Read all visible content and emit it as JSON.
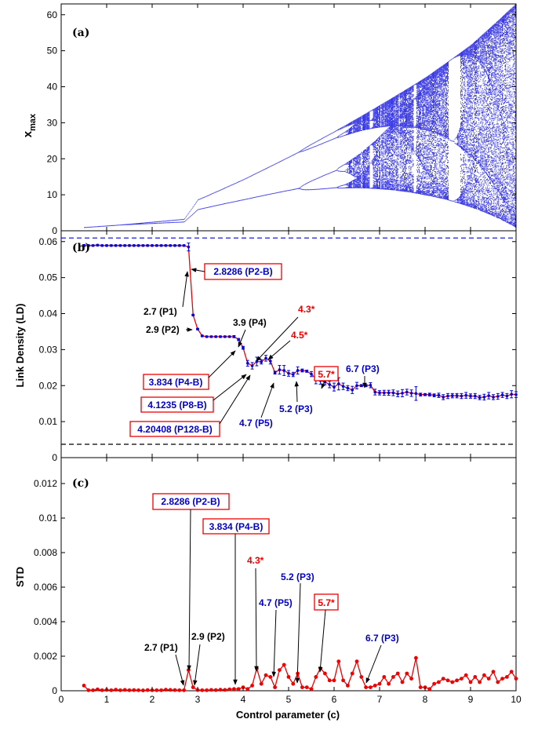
{
  "chart_data": [
    {
      "type": "scatter",
      "panel_label": "(a)",
      "title": "",
      "xlabel": "",
      "ylabel": "x",
      "ylabel_sub": "max",
      "xlim": [
        0,
        10
      ],
      "ylim": [
        0,
        63
      ],
      "xticks": [
        0,
        1,
        2,
        3,
        4,
        5,
        6,
        7,
        8,
        9,
        10
      ],
      "yticks": [
        0,
        10,
        20,
        30,
        40,
        50,
        60
      ],
      "color": "#0000dd",
      "description_series": {
        "name": "",
        "envelope_max": [
          [
            0.5,
            0.9
          ],
          [
            2.7,
            3.8
          ],
          [
            3.0,
            10.5
          ],
          [
            4.0,
            17
          ],
          [
            5.0,
            24
          ],
          [
            6.0,
            31
          ],
          [
            7.0,
            38
          ],
          [
            8.0,
            45
          ],
          [
            9.0,
            53
          ],
          [
            10.0,
            63
          ]
        ],
        "period_windows": [
          [
            4.9,
            5.3
          ],
          [
            6.6,
            6.85
          ],
          [
            8.6,
            9.2
          ]
        ]
      }
    },
    {
      "type": "line",
      "panel_label": "(b)",
      "title": "",
      "xlabel": "",
      "ylabel": "Link Density (LD)",
      "xlim": [
        0,
        10
      ],
      "ylim": [
        0,
        0.063
      ],
      "xticks": [
        0,
        1,
        2,
        3,
        4,
        5,
        6,
        7,
        8,
        9,
        10
      ],
      "yticks": [
        0,
        0.01,
        0.02,
        0.03,
        0.04,
        0.05,
        0.06
      ],
      "upper_dashed": 0.061,
      "lower_dashed": 0.0037,
      "series": [
        {
          "name": "",
          "color": "#0000dd",
          "x": [
            0.5,
            0.6,
            0.7,
            0.8,
            0.9,
            1.0,
            1.1,
            1.2,
            1.3,
            1.4,
            1.5,
            1.6,
            1.7,
            1.8,
            1.9,
            2.0,
            2.1,
            2.2,
            2.3,
            2.4,
            2.5,
            2.6,
            2.7,
            2.8,
            2.9,
            3.0,
            3.1,
            3.2,
            3.3,
            3.4,
            3.5,
            3.6,
            3.7,
            3.8,
            3.9,
            4.0,
            4.1,
            4.2,
            4.3,
            4.4,
            4.5,
            4.6,
            4.7,
            4.8,
            4.9,
            5.0,
            5.1,
            5.2,
            5.3,
            5.4,
            5.5,
            5.6,
            5.7,
            5.8,
            5.9,
            6.0,
            6.1,
            6.2,
            6.3,
            6.4,
            6.5,
            6.6,
            6.7,
            6.8,
            6.9,
            7.0,
            7.1,
            7.2,
            7.3,
            7.4,
            7.5,
            7.6,
            7.7,
            7.8,
            7.9,
            8.0,
            8.1,
            8.2,
            8.3,
            8.4,
            8.5,
            8.6,
            8.7,
            8.8,
            8.9,
            9.0,
            9.1,
            9.2,
            9.3,
            9.4,
            9.5,
            9.6,
            9.7,
            9.8,
            9.9,
            10.0
          ],
          "y": [
            0.0589,
            0.0589,
            0.0589,
            0.059,
            0.0589,
            0.0589,
            0.0589,
            0.0589,
            0.0589,
            0.0589,
            0.0589,
            0.0589,
            0.0589,
            0.0589,
            0.0589,
            0.0589,
            0.0589,
            0.0589,
            0.0589,
            0.0589,
            0.0589,
            0.0589,
            0.0589,
            0.0585,
            0.0396,
            0.0357,
            0.0338,
            0.0336,
            0.0336,
            0.0336,
            0.0336,
            0.0336,
            0.0336,
            0.0336,
            0.0328,
            0.0305,
            0.0262,
            0.0255,
            0.0267,
            0.0266,
            0.0276,
            0.0268,
            0.0236,
            0.0244,
            0.0242,
            0.0234,
            0.0231,
            0.0242,
            0.0242,
            0.024,
            0.0232,
            0.0219,
            0.0214,
            0.021,
            0.0203,
            0.0196,
            0.0205,
            0.0198,
            0.0193,
            0.0188,
            0.02,
            0.02,
            0.02,
            0.0201,
            0.0182,
            0.018,
            0.018,
            0.018,
            0.018,
            0.0177,
            0.0179,
            0.0182,
            0.0179,
            0.0178,
            0.0175,
            0.0175,
            0.0175,
            0.0173,
            0.0173,
            0.0168,
            0.0171,
            0.0172,
            0.0172,
            0.0171,
            0.0173,
            0.0171,
            0.0171,
            0.0167,
            0.0168,
            0.0172,
            0.0168,
            0.017,
            0.0174,
            0.0171,
            0.0176,
            0.0175
          ],
          "err": [
            0.0003,
            0.0002,
            0.0002,
            0.0002,
            0.0002,
            0.0002,
            0.0002,
            0.0002,
            0.0002,
            0.0002,
            0.0002,
            0.0002,
            0.0002,
            0.0002,
            0.0002,
            0.0002,
            0.0002,
            0.0002,
            0.0002,
            0.0002,
            0.0002,
            0.0002,
            0.0002,
            0.0011,
            0.0002,
            0.0002,
            0.0002,
            0.0002,
            0.0002,
            0.0002,
            0.0002,
            0.0002,
            0.0002,
            0.0003,
            0.0003,
            0.0004,
            0.0008,
            0.0009,
            0.0012,
            0.0006,
            0.0008,
            0.0008,
            0.0004,
            0.0012,
            0.0014,
            0.0008,
            0.0006,
            0.001,
            0.0004,
            0.0003,
            0.0007,
            0.0014,
            0.001,
            0.0008,
            0.0009,
            0.0011,
            0.0017,
            0.0009,
            0.0007,
            0.001,
            0.0009,
            0.0003,
            0.0003,
            0.0007,
            0.0008,
            0.0006,
            0.0007,
            0.0007,
            0.0008,
            0.0008,
            0.001,
            0.0008,
            0.0009,
            0.0019,
            0.0004,
            0.0003,
            0.0004,
            0.0004,
            0.0006,
            0.0007,
            0.0007,
            0.0006,
            0.0006,
            0.0007,
            0.0008,
            0.0006,
            0.0007,
            0.0006,
            0.0008,
            0.0009,
            0.0007,
            0.0008,
            0.0007,
            0.0007,
            0.001,
            0.0008
          ]
        }
      ],
      "annotations": [
        {
          "text": "2.8286 (P2-B)",
          "boxed": true,
          "color": "#0000cc"
        },
        {
          "text": "2.7 (P1)",
          "boxed": false,
          "color": "#000000"
        },
        {
          "text": "2.9 (P2)",
          "boxed": false,
          "color": "#000000"
        },
        {
          "text": "3.9 (P4)",
          "boxed": false,
          "color": "#000000"
        },
        {
          "text": "4.3*",
          "boxed": false,
          "color": "#ff0000"
        },
        {
          "text": "4.5*",
          "boxed": false,
          "color": "#ff0000"
        },
        {
          "text": "5.7*",
          "boxed": true,
          "color": "#ff0000"
        },
        {
          "text": "6.7 (P3)",
          "boxed": false,
          "color": "#0000cc"
        },
        {
          "text": "3.834 (P4-B)",
          "boxed": true,
          "color": "#0000cc"
        },
        {
          "text": "4.1235 (P8-B)",
          "boxed": true,
          "color": "#0000cc"
        },
        {
          "text": "4.20408 (P128-B)",
          "boxed": true,
          "color": "#0000cc"
        },
        {
          "text": "4.7 (P5)",
          "boxed": false,
          "color": "#0000cc"
        },
        {
          "text": "5.2 (P3)",
          "boxed": false,
          "color": "#0000cc"
        }
      ]
    },
    {
      "type": "line",
      "panel_label": "(c)",
      "title": "",
      "xlabel": "Control parameter (c)",
      "ylabel": "STD",
      "xlim": [
        0,
        10
      ],
      "ylim": [
        0,
        0.0135
      ],
      "xticks": [
        0,
        1,
        2,
        3,
        4,
        5,
        6,
        7,
        8,
        9,
        10
      ],
      "yticks": [
        0,
        0.002,
        0.004,
        0.006,
        0.008,
        0.01,
        0.012
      ],
      "series": [
        {
          "name": "",
          "color": "#ee0000",
          "x": [
            0.5,
            0.6,
            0.7,
            0.8,
            0.9,
            1.0,
            1.1,
            1.2,
            1.3,
            1.4,
            1.5,
            1.6,
            1.7,
            1.8,
            1.9,
            2.0,
            2.1,
            2.2,
            2.3,
            2.4,
            2.5,
            2.6,
            2.7,
            2.8,
            2.9,
            3.0,
            3.1,
            3.2,
            3.3,
            3.4,
            3.5,
            3.6,
            3.7,
            3.8,
            3.9,
            4.0,
            4.1,
            4.2,
            4.3,
            4.4,
            4.5,
            4.6,
            4.7,
            4.8,
            4.9,
            5.0,
            5.1,
            5.2,
            5.3,
            5.4,
            5.5,
            5.6,
            5.7,
            5.8,
            5.9,
            6.0,
            6.1,
            6.2,
            6.3,
            6.4,
            6.5,
            6.6,
            6.7,
            6.8,
            6.9,
            7.0,
            7.1,
            7.2,
            7.3,
            7.4,
            7.5,
            7.6,
            7.7,
            7.8,
            7.9,
            8.0,
            8.1,
            8.2,
            8.3,
            8.4,
            8.5,
            8.6,
            8.7,
            8.8,
            8.9,
            9.0,
            9.1,
            9.2,
            9.3,
            9.4,
            9.5,
            9.6,
            9.7,
            9.8,
            9.9,
            10.0
          ],
          "y": [
            0.0003,
            3e-05,
            3e-05,
            8e-05,
            3e-05,
            5e-05,
            3e-05,
            6e-05,
            3e-05,
            5e-05,
            3e-05,
            4e-05,
            3e-05,
            2e-05,
            4e-05,
            3e-05,
            3e-05,
            3e-05,
            6e-05,
            5e-05,
            4e-05,
            3e-05,
            3e-05,
            0.0012,
            0.0002,
            4e-05,
            3e-05,
            3e-05,
            5e-05,
            4e-05,
            6e-05,
            5e-05,
            8e-05,
            0.0001,
            0.0001,
            0.0002,
            0.0001,
            0.0003,
            0.0013,
            0.0004,
            0.0009,
            0.0008,
            0.0002,
            0.0012,
            0.0015,
            0.0008,
            0.0004,
            0.001,
            0.0002,
            0.0002,
            0.0001,
            0.0008,
            0.0013,
            0.001,
            0.0006,
            0.0006,
            0.0017,
            0.0006,
            0.0003,
            0.001,
            0.0017,
            0.0008,
            0.0002,
            0.0002,
            0.0003,
            0.0004,
            0.0008,
            0.0004,
            0.0008,
            0.001,
            0.0005,
            0.001,
            0.0007,
            0.0019,
            0.0002,
            0.0002,
            0.0001,
            0.0004,
            0.0005,
            0.0007,
            0.0006,
            0.0005,
            0.0006,
            0.0007,
            0.0009,
            0.0005,
            0.0008,
            0.0005,
            0.0009,
            0.0007,
            0.0011,
            0.0005,
            0.0007,
            0.0008,
            0.0011,
            0.0007
          ]
        }
      ],
      "annotations": [
        {
          "text": "2.8286 (P2-B)",
          "boxed": true,
          "color": "#0000cc"
        },
        {
          "text": "3.834 (P4-B)",
          "boxed": true,
          "color": "#0000cc"
        },
        {
          "text": "4.3*",
          "boxed": false,
          "color": "#ff0000"
        },
        {
          "text": "5.7*",
          "boxed": true,
          "color": "#ff0000"
        },
        {
          "text": "5.2 (P3)",
          "boxed": false,
          "color": "#0000cc"
        },
        {
          "text": "4.7 (P5)",
          "boxed": false,
          "color": "#0000cc"
        },
        {
          "text": "6.7 (P3)",
          "boxed": false,
          "color": "#0000cc"
        },
        {
          "text": "2.7 (P1)",
          "boxed": false,
          "color": "#000000"
        },
        {
          "text": "2.9 (P2)",
          "boxed": false,
          "color": "#000000"
        }
      ]
    }
  ]
}
